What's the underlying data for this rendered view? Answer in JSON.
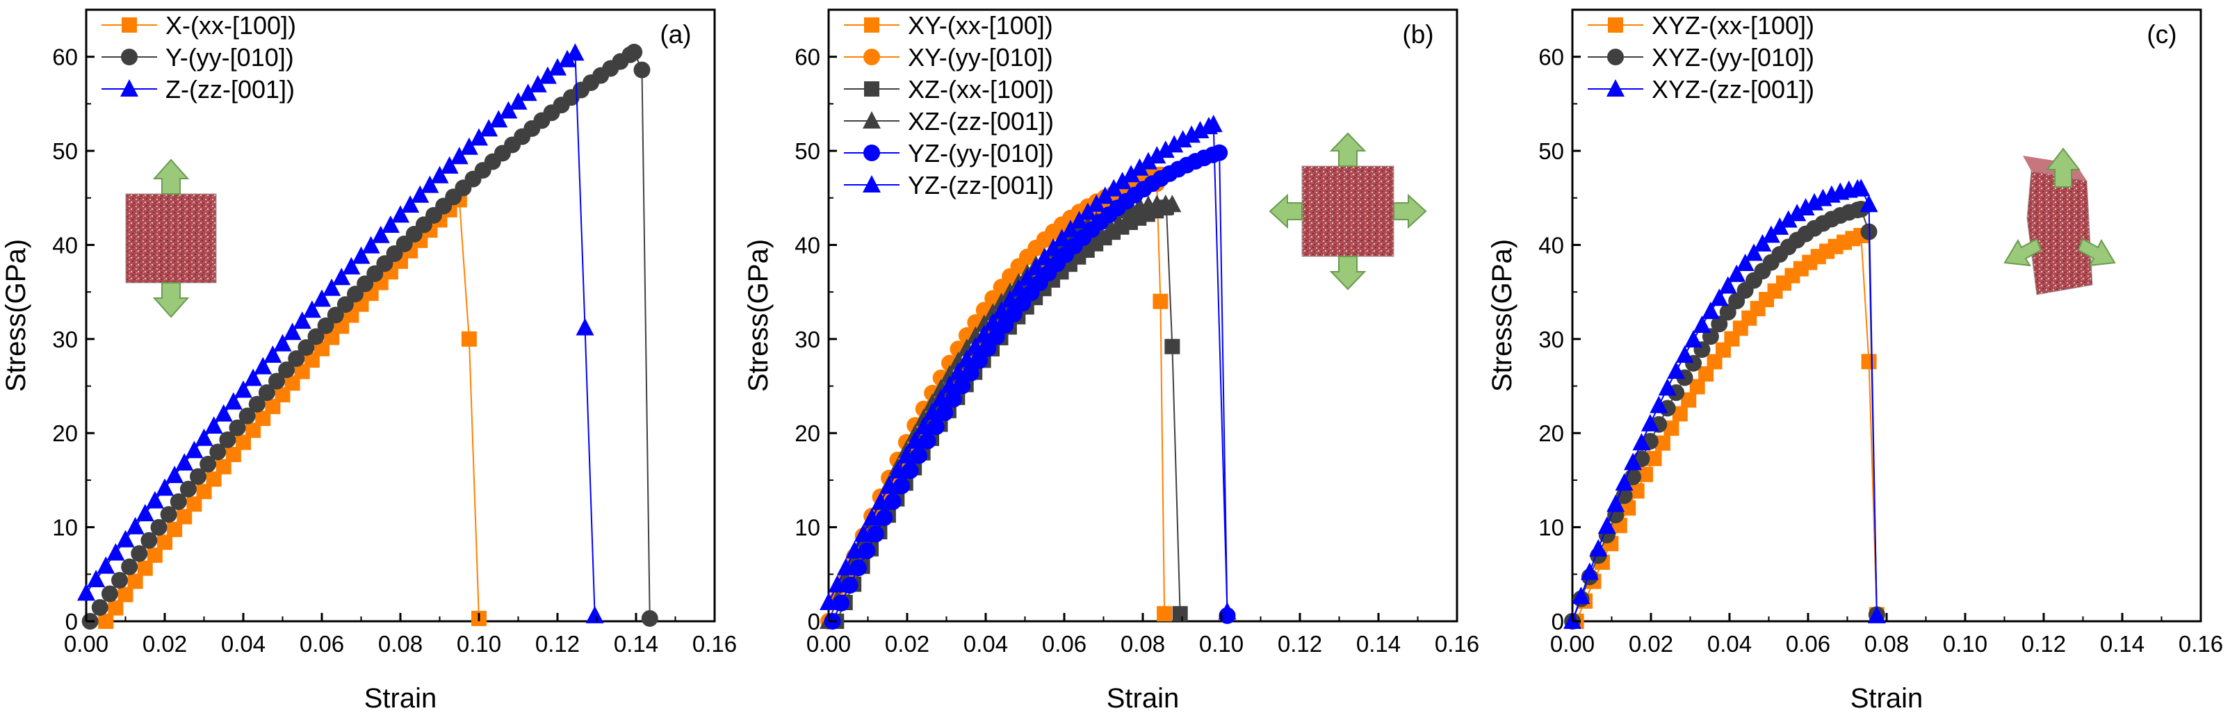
{
  "figure": {
    "marker_colors": {
      "orange": "#ff8000",
      "dark": "#404040",
      "blue": "#0000ff"
    },
    "arrow_color": "#9bc97a",
    "cube_color": "#b04a52"
  },
  "chart_data": [
    {
      "type": "line",
      "panel_label": "(a)",
      "xlabel": "Strain",
      "ylabel": "Stress(GPa)",
      "xlim": [
        0,
        0.16
      ],
      "ylim": [
        0,
        65
      ],
      "xticks": [
        "0.00",
        "0.02",
        "0.04",
        "0.06",
        "0.08",
        "0.10",
        "0.12",
        "0.14",
        "0.16"
      ],
      "yticks": [
        "0",
        "10",
        "20",
        "30",
        "40",
        "50",
        "60"
      ],
      "grid": false,
      "legend_position": "top-left",
      "inset": "cube with arrows along y axis",
      "series": [
        {
          "name": "X-(xx-[100])",
          "color": "#ff8000",
          "marker": "square",
          "step": 0.0025,
          "peak_strain": 0.095,
          "peak_stress": 44.8,
          "start_strain": 0.005,
          "curvature": 0.15,
          "fracture": [
            [
              0.0975,
              30
            ],
            [
              0.1,
              0.3
            ]
          ]
        },
        {
          "name": "Y-(yy-[010])",
          "color": "#404040",
          "marker": "circle",
          "step": 0.0025,
          "peak_strain": 0.1395,
          "peak_stress": 60.5,
          "start_strain": 0.001,
          "curvature": 0.35,
          "fracture": [
            [
              0.1415,
              58.6
            ],
            [
              0.1435,
              0.3
            ]
          ]
        },
        {
          "name": "Z-(zz-[001])",
          "color": "#0000ff",
          "marker": "triangle",
          "step": 0.0025,
          "peak_strain": 0.1245,
          "peak_stress": 60.4,
          "start_strain": 0.0,
          "start_stress": 3.0,
          "curvature": 0.25,
          "fracture": [
            [
              0.127,
              31.2
            ],
            [
              0.1295,
              0.6
            ]
          ]
        }
      ]
    },
    {
      "type": "line",
      "panel_label": "(b)",
      "xlabel": "Strain",
      "ylabel": "Stress(GPa)",
      "xlim": [
        0,
        0.16
      ],
      "ylim": [
        0,
        65
      ],
      "xticks": [
        "0.00",
        "0.02",
        "0.04",
        "0.06",
        "0.08",
        "0.10",
        "0.12",
        "0.14",
        "0.16"
      ],
      "yticks": [
        "0",
        "10",
        "20",
        "30",
        "40",
        "50",
        "60"
      ],
      "grid": false,
      "legend_position": "top-left",
      "inset": "cube with arrows along x and y axes",
      "series": [
        {
          "name": "XY-(xx-[100])",
          "color": "#ff8000",
          "marker": "square",
          "step": 0.0022,
          "peak_strain": 0.0835,
          "peak_stress": 47.5,
          "start_strain": 0.001,
          "curvature": 0.65,
          "fracture": [
            [
              0.0845,
              34
            ],
            [
              0.0855,
              0.8
            ]
          ]
        },
        {
          "name": "XY-(yy-[010])",
          "color": "#ff8000",
          "marker": "circle",
          "step": 0.0022,
          "peak_strain": 0.0835,
          "peak_stress": 46.5,
          "start_strain": 0.0,
          "curvature": 0.95,
          "fracture": []
        },
        {
          "name": "XZ-(xx-[100])",
          "color": "#404040",
          "marker": "square",
          "step": 0.0022,
          "peak_strain": 0.086,
          "peak_stress": 44.0,
          "start_strain": 0.002,
          "curvature": 0.75,
          "fracture": [
            [
              0.0875,
              29.2
            ],
            [
              0.0895,
              0.8
            ]
          ]
        },
        {
          "name": "XZ-(zz-[001])",
          "color": "#404040",
          "marker": "triangle",
          "step": 0.0022,
          "peak_strain": 0.0875,
          "peak_stress": 44.3,
          "start_strain": 0.0,
          "curvature": 1.05,
          "fracture": []
        },
        {
          "name": "YZ-(yy-[010])",
          "color": "#0000ff",
          "marker": "circle",
          "step": 0.0022,
          "peak_strain": 0.0995,
          "peak_stress": 49.8,
          "start_strain": 0.001,
          "curvature": 0.75,
          "fracture": [
            [
              0.1015,
              0.6
            ]
          ]
        },
        {
          "name": "YZ-(zz-[001])",
          "color": "#0000ff",
          "marker": "triangle",
          "step": 0.0022,
          "peak_strain": 0.098,
          "peak_stress": 52.8,
          "start_strain": 0.0,
          "start_stress": 2.0,
          "curvature": 0.65,
          "fracture": [
            [
              0.1015,
              1.0
            ]
          ]
        }
      ]
    },
    {
      "type": "line",
      "panel_label": "(c)",
      "xlabel": "Strain",
      "ylabel": "Stress(GPa)",
      "xlim": [
        0,
        0.16
      ],
      "ylim": [
        0,
        65
      ],
      "xticks": [
        "0.00",
        "0.02",
        "0.04",
        "0.06",
        "0.08",
        "0.10",
        "0.12",
        "0.14",
        "0.16"
      ],
      "yticks": [
        "0",
        "10",
        "20",
        "30",
        "40",
        "50",
        "60"
      ],
      "grid": false,
      "legend_position": "top-left",
      "inset": "rotated cube with three arrows",
      "series": [
        {
          "name": "XYZ-(xx-[100])",
          "color": "#ff8000",
          "marker": "square",
          "step": 0.0022,
          "peak_strain": 0.0735,
          "peak_stress": 41.0,
          "start_strain": 0.001,
          "curvature": 0.75,
          "fracture": [
            [
              0.0755,
              27.6
            ],
            [
              0.0775,
              0.7
            ]
          ]
        },
        {
          "name": "XYZ-(yy-[010])",
          "color": "#404040",
          "marker": "circle",
          "step": 0.0022,
          "peak_strain": 0.0735,
          "peak_stress": 43.8,
          "start_strain": 0.0,
          "curvature": 0.85,
          "fracture": [
            [
              0.0755,
              41.4
            ],
            [
              0.0775,
              0.7
            ]
          ]
        },
        {
          "name": "XYZ-(zz-[001])",
          "color": "#0000ff",
          "marker": "triangle",
          "step": 0.0022,
          "peak_strain": 0.0735,
          "peak_stress": 46.0,
          "start_strain": 0.0,
          "curvature": 0.95,
          "fracture": [
            [
              0.0755,
              44.3
            ],
            [
              0.0775,
              0.6
            ]
          ]
        }
      ]
    }
  ]
}
